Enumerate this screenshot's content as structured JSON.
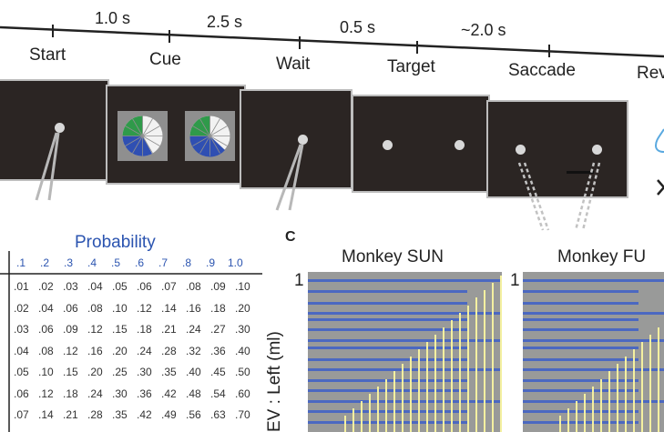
{
  "timeline": {
    "events": [
      "Start",
      "Cue",
      "Wait",
      "Target",
      "Saccade",
      "Rev"
    ],
    "durations": [
      "1.0 s",
      "2.5 s",
      "0.5 s",
      "~2.0 s"
    ]
  },
  "table": {
    "title": "Probability",
    "column_headers": [
      ".1",
      ".2",
      ".3",
      ".4",
      ".5",
      ".6",
      ".7",
      ".8",
      ".9",
      "1.0"
    ],
    "rows": [
      [
        ".01",
        ".02",
        ".03",
        ".04",
        ".05",
        ".06",
        ".07",
        ".08",
        ".09",
        ".10"
      ],
      [
        ".02",
        ".04",
        ".06",
        ".08",
        ".10",
        ".12",
        ".14",
        ".16",
        ".18",
        ".20"
      ],
      [
        ".03",
        ".06",
        ".09",
        ".12",
        ".15",
        ".18",
        ".21",
        ".24",
        ".27",
        ".30"
      ],
      [
        ".04",
        ".08",
        ".12",
        ".16",
        ".20",
        ".24",
        ".28",
        ".32",
        ".36",
        ".40"
      ],
      [
        ".05",
        ".10",
        ".15",
        ".20",
        ".25",
        ".30",
        ".35",
        ".40",
        ".45",
        ".50"
      ],
      [
        ".06",
        ".12",
        ".18",
        ".24",
        ".30",
        ".36",
        ".42",
        ".48",
        ".54",
        ".60"
      ],
      [
        ".07",
        ".14",
        ".21",
        ".28",
        ".35",
        ".42",
        ".49",
        ".56",
        ".63",
        ".70"
      ]
    ]
  },
  "panel_c": {
    "letter": "C",
    "left_title": "Monkey SUN",
    "right_title": "Monkey FU",
    "ylabel": "EV : Left (ml)",
    "y_tick_left": "1",
    "y_tick_right": "1"
  },
  "colors": {
    "screen": "#2b2523",
    "probability_blue": "#2b54b0",
    "heat_gray": "#999a99"
  }
}
